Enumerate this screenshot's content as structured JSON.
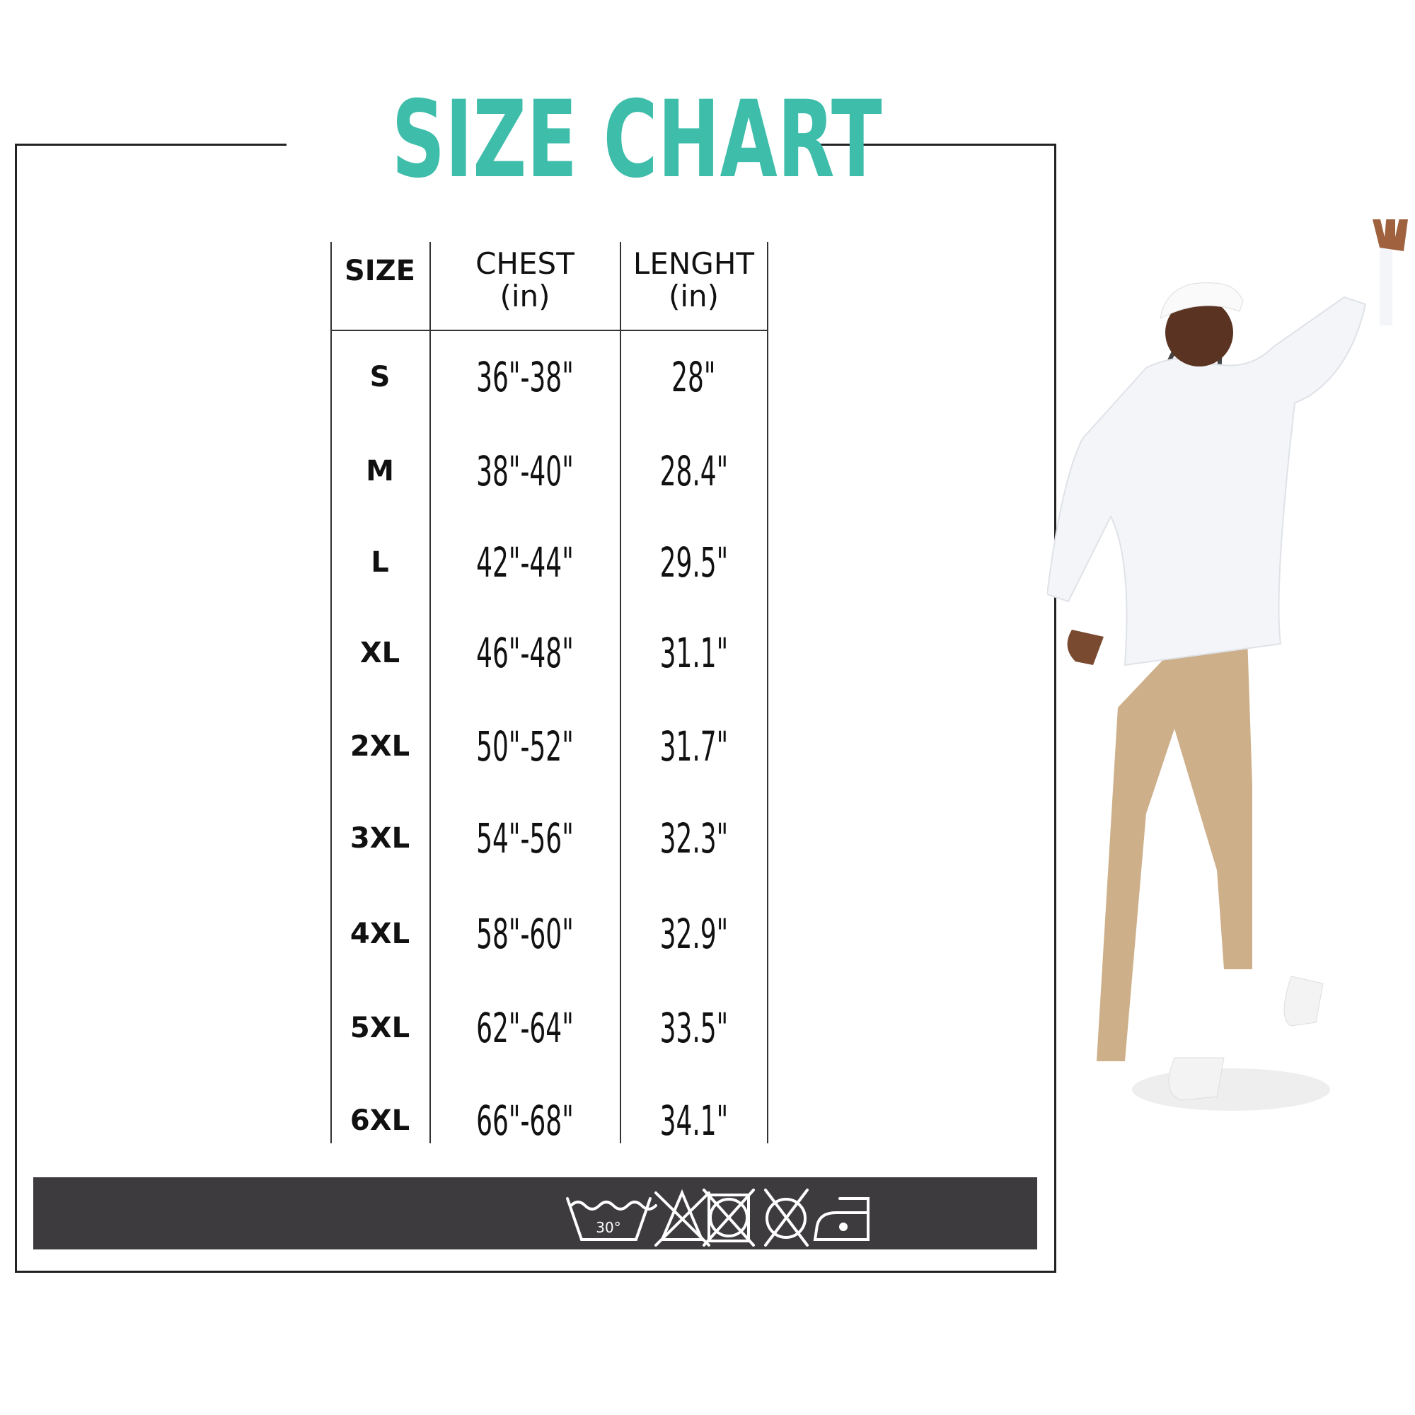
{
  "title": "SIZE CHART",
  "colors": {
    "title": "#3dbdaa",
    "care_bar": "#3d3b3e",
    "text": "#111111"
  },
  "table": {
    "headers": [
      {
        "label": "SIZE",
        "unit": ""
      },
      {
        "label": "CHEST",
        "unit": "(in)"
      },
      {
        "label": "LENGHT",
        "unit": "(in)"
      }
    ],
    "rows": [
      {
        "size": "S",
        "chest": "36\"-38\"",
        "length": "28\""
      },
      {
        "size": "M",
        "chest": "38\"-40\"",
        "length": "28.4\""
      },
      {
        "size": "L",
        "chest": "42\"-44\"",
        "length": "29.5\""
      },
      {
        "size": "XL",
        "chest": "46\"-48\"",
        "length": "31.1\""
      },
      {
        "size": "2XL",
        "chest": "50\"-52\"",
        "length": "31.7\""
      },
      {
        "size": "3XL",
        "chest": "54\"-56\"",
        "length": "32.3\""
      },
      {
        "size": "4XL",
        "chest": "58\"-60\"",
        "length": "32.9\""
      },
      {
        "size": "5XL",
        "chest": "62\"-64\"",
        "length": "33.5\""
      },
      {
        "size": "6XL",
        "chest": "66\"-68\"",
        "length": "34.1\""
      }
    ]
  },
  "care_icons": [
    {
      "name": "wash-30-icon",
      "label": "30°"
    },
    {
      "name": "no-bleach-icon"
    },
    {
      "name": "no-tumble-dry-icon"
    },
    {
      "name": "no-dry-clean-icon"
    },
    {
      "name": "iron-low-icon"
    }
  ]
}
